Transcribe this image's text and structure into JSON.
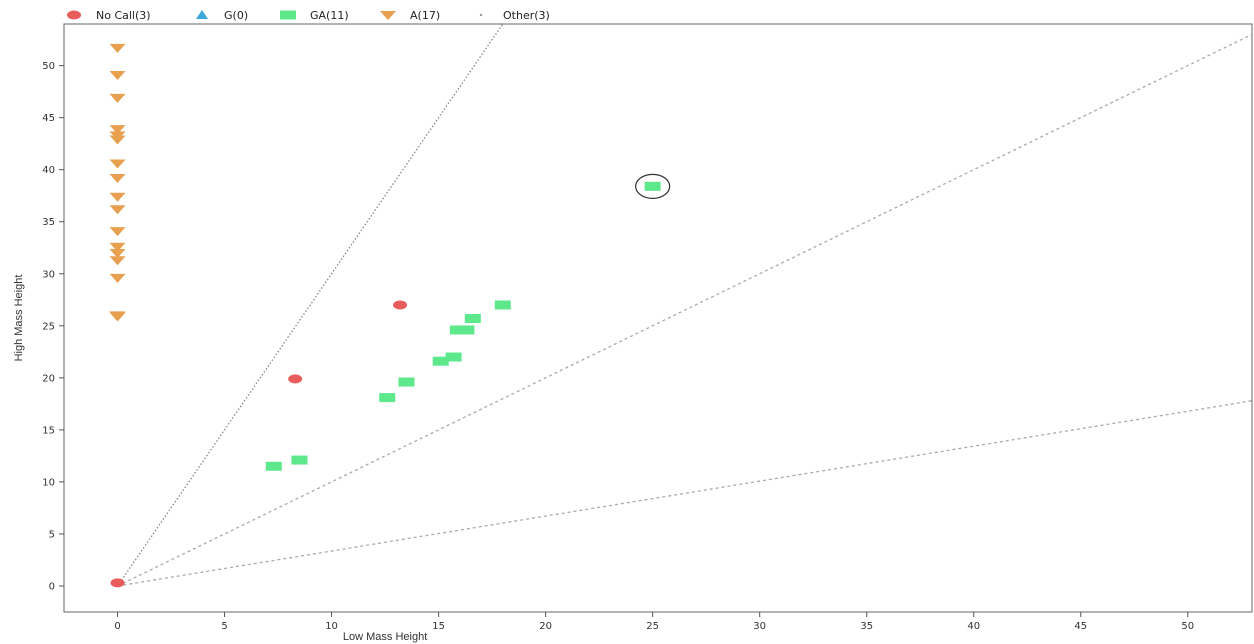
{
  "chart_data": {
    "type": "scatter",
    "xlabel": "Low Mass Height",
    "ylabel": "High Mass Height",
    "xlim": [
      -2.5,
      53
    ],
    "ylim": [
      -2.5,
      54
    ],
    "xticks": [
      0,
      5,
      10,
      15,
      20,
      25,
      30,
      35,
      40,
      45,
      50
    ],
    "yticks": [
      0,
      5,
      10,
      15,
      20,
      25,
      30,
      35,
      40,
      45,
      50
    ],
    "grid": false,
    "legend_position": "top-left",
    "legend": [
      {
        "label": "No Call(3)",
        "symbol": "circle",
        "color": "#e85c5c"
      },
      {
        "label": "G(0)",
        "symbol": "triangle-up",
        "color": "#3aa8d8"
      },
      {
        "label": "GA(11)",
        "symbol": "square",
        "color": "#5ee88c"
      },
      {
        "label": "A(17)",
        "symbol": "triangle-down",
        "color": "#e8a050"
      },
      {
        "label": "Other(3)",
        "symbol": "dot",
        "color": "#999999"
      }
    ],
    "series": [
      {
        "name": "No Call(3)",
        "marker": "circle",
        "color": "#e85c5c",
        "points": [
          [
            0,
            0.3
          ],
          [
            8.3,
            19.9
          ],
          [
            13.2,
            27.0
          ]
        ]
      },
      {
        "name": "GA(11)",
        "marker": "square",
        "color": "#5ee88c",
        "points": [
          [
            7.3,
            11.5
          ],
          [
            8.5,
            12.1
          ],
          [
            12.6,
            18.1
          ],
          [
            13.5,
            19.6
          ],
          [
            15.1,
            21.6
          ],
          [
            15.7,
            22.0
          ],
          [
            15.9,
            24.6
          ],
          [
            16.3,
            24.6
          ],
          [
            16.6,
            25.7
          ],
          [
            18.0,
            27.0
          ],
          [
            25.0,
            38.4
          ]
        ]
      },
      {
        "name": "A(17)",
        "marker": "triangle-down",
        "color": "#e8a050",
        "points": [
          [
            0,
            51.7
          ],
          [
            0,
            49.1
          ],
          [
            0,
            46.9
          ],
          [
            0,
            43.9
          ],
          [
            0,
            43.3
          ],
          [
            0,
            42.9
          ],
          [
            0,
            40.6
          ],
          [
            0,
            39.2
          ],
          [
            0,
            37.4
          ],
          [
            0,
            36.2
          ],
          [
            0,
            34.1
          ],
          [
            0,
            32.6
          ],
          [
            0,
            32.0
          ],
          [
            0,
            31.3
          ],
          [
            0,
            29.6
          ],
          [
            0,
            26.0
          ],
          [
            0,
            25.9
          ]
        ]
      }
    ],
    "reference_lines": [
      {
        "from": [
          0,
          0
        ],
        "to": [
          18,
          54
        ],
        "style": "dotted",
        "color": "#888888"
      },
      {
        "from": [
          0,
          0
        ],
        "to": [
          53,
          53
        ],
        "style": "dashed",
        "color": "#aaaaaa"
      },
      {
        "from": [
          0,
          0
        ],
        "to": [
          53,
          17.8
        ],
        "style": "dashed",
        "color": "#aaaaaa"
      }
    ],
    "highlighted_point": [
      25.0,
      38.4
    ]
  }
}
